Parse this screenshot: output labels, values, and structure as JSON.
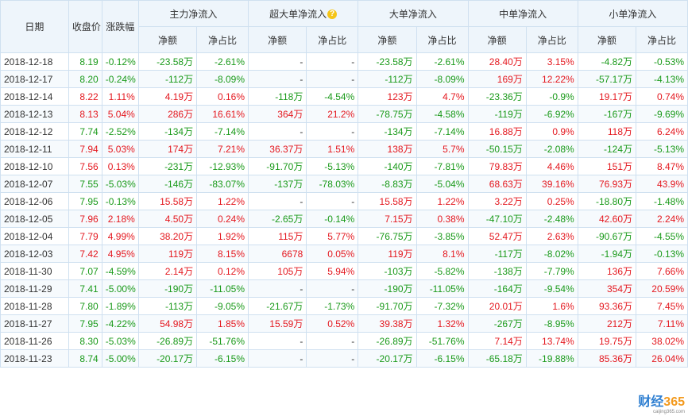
{
  "headers": {
    "date": "日期",
    "close": "收盘价",
    "change": "涨跌幅",
    "groups": [
      "主力净流入",
      "超大单净流入",
      "大单净流入",
      "中单净流入",
      "小单净流入"
    ],
    "amount": "净额",
    "ratio": "净占比"
  },
  "help_icon_text": "?",
  "rows": [
    [
      "2018-12-18",
      "8.19",
      "-0.12%",
      "-23.58万",
      "-2.61%",
      "-",
      "-",
      "-23.58万",
      "-2.61%",
      "28.40万",
      "3.15%",
      "-4.82万",
      "-0.53%"
    ],
    [
      "2018-12-17",
      "8.20",
      "-0.24%",
      "-112万",
      "-8.09%",
      "-",
      "-",
      "-112万",
      "-8.09%",
      "169万",
      "12.22%",
      "-57.17万",
      "-4.13%"
    ],
    [
      "2018-12-14",
      "8.22",
      "1.11%",
      "4.19万",
      "0.16%",
      "-118万",
      "-4.54%",
      "123万",
      "4.7%",
      "-23.36万",
      "-0.9%",
      "19.17万",
      "0.74%"
    ],
    [
      "2018-12-13",
      "8.13",
      "5.04%",
      "286万",
      "16.61%",
      "364万",
      "21.2%",
      "-78.75万",
      "-4.58%",
      "-119万",
      "-6.92%",
      "-167万",
      "-9.69%"
    ],
    [
      "2018-12-12",
      "7.74",
      "-2.52%",
      "-134万",
      "-7.14%",
      "-",
      "-",
      "-134万",
      "-7.14%",
      "16.88万",
      "0.9%",
      "118万",
      "6.24%"
    ],
    [
      "2018-12-11",
      "7.94",
      "5.03%",
      "174万",
      "7.21%",
      "36.37万",
      "1.51%",
      "138万",
      "5.7%",
      "-50.15万",
      "-2.08%",
      "-124万",
      "-5.13%"
    ],
    [
      "2018-12-10",
      "7.56",
      "0.13%",
      "-231万",
      "-12.93%",
      "-91.70万",
      "-5.13%",
      "-140万",
      "-7.81%",
      "79.83万",
      "4.46%",
      "151万",
      "8.47%"
    ],
    [
      "2018-12-07",
      "7.55",
      "-5.03%",
      "-146万",
      "-83.07%",
      "-137万",
      "-78.03%",
      "-8.83万",
      "-5.04%",
      "68.63万",
      "39.16%",
      "76.93万",
      "43.9%"
    ],
    [
      "2018-12-06",
      "7.95",
      "-0.13%",
      "15.58万",
      "1.22%",
      "-",
      "-",
      "15.58万",
      "1.22%",
      "3.22万",
      "0.25%",
      "-18.80万",
      "-1.48%"
    ],
    [
      "2018-12-05",
      "7.96",
      "2.18%",
      "4.50万",
      "0.24%",
      "-2.65万",
      "-0.14%",
      "7.15万",
      "0.38%",
      "-47.10万",
      "-2.48%",
      "42.60万",
      "2.24%"
    ],
    [
      "2018-12-04",
      "7.79",
      "4.99%",
      "38.20万",
      "1.92%",
      "115万",
      "5.77%",
      "-76.75万",
      "-3.85%",
      "52.47万",
      "2.63%",
      "-90.67万",
      "-4.55%"
    ],
    [
      "2018-12-03",
      "7.42",
      "4.95%",
      "119万",
      "8.15%",
      "6678",
      "0.05%",
      "119万",
      "8.1%",
      "-117万",
      "-8.02%",
      "-1.94万",
      "-0.13%"
    ],
    [
      "2018-11-30",
      "7.07",
      "-4.59%",
      "2.14万",
      "0.12%",
      "105万",
      "5.94%",
      "-103万",
      "-5.82%",
      "-138万",
      "-7.79%",
      "136万",
      "7.66%"
    ],
    [
      "2018-11-29",
      "7.41",
      "-5.00%",
      "-190万",
      "-11.05%",
      "-",
      "-",
      "-190万",
      "-11.05%",
      "-164万",
      "-9.54%",
      "354万",
      "20.59%"
    ],
    [
      "2018-11-28",
      "7.80",
      "-1.89%",
      "-113万",
      "-9.05%",
      "-21.67万",
      "-1.73%",
      "-91.70万",
      "-7.32%",
      "20.01万",
      "1.6%",
      "93.36万",
      "7.45%"
    ],
    [
      "2018-11-27",
      "7.95",
      "-4.22%",
      "54.98万",
      "1.85%",
      "15.59万",
      "0.52%",
      "39.38万",
      "1.32%",
      "-267万",
      "-8.95%",
      "212万",
      "7.11%"
    ],
    [
      "2018-11-26",
      "8.30",
      "-5.03%",
      "-26.89万",
      "-51.76%",
      "-",
      "-",
      "-26.89万",
      "-51.76%",
      "7.14万",
      "13.74%",
      "19.75万",
      "38.02%"
    ],
    [
      "2018-11-23",
      "8.74",
      "-5.00%",
      "-20.17万",
      "-6.15%",
      "-",
      "-",
      "-20.17万",
      "-6.15%",
      "-65.18万",
      "-19.88%",
      "85.36万",
      "26.04%"
    ]
  ],
  "colors": {
    "up": "#e4181f",
    "down": "#1a9a1a",
    "header_bg": "#eef5fb",
    "border": "#cfe0f0"
  },
  "watermark": {
    "brand_a": "财经",
    "brand_b": "365",
    "url": "caijing365.com"
  }
}
